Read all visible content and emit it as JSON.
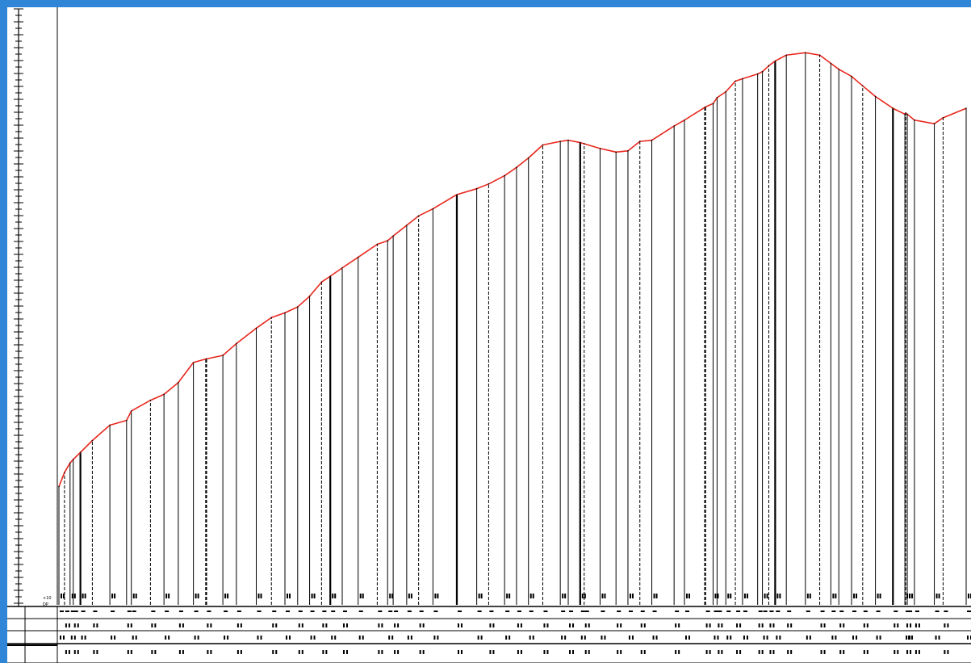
{
  "chart_data": {
    "type": "line",
    "title": "",
    "xlabel": "",
    "ylabel": "",
    "grid": false,
    "line_color": "#e8271c",
    "x": [
      0,
      7,
      14,
      18,
      27,
      42,
      64,
      85,
      91,
      115,
      132,
      150,
      169,
      185,
      206,
      223,
      248,
      267,
      284,
      300,
      315,
      330,
      341,
      356,
      376,
      400,
      413,
      420,
      437,
      452,
      470,
      500,
      525,
      540,
      560,
      575,
      590,
      608,
      630,
      640,
      655,
      660,
      680,
      700,
      715,
      730,
      745,
      773,
      786,
      812,
      822,
      827,
      838,
      850,
      859,
      878,
      884,
      892,
      900,
      914,
      938,
      956,
      970,
      980,
      996,
      1010,
      1026,
      1048,
      1063,
      1064,
      1066,
      1075,
      1100,
      1111,
      1140
    ],
    "values": [
      10,
      11.2,
      12.0,
      12.3,
      12.9,
      13.9,
      15.2,
      15.6,
      16.4,
      17.3,
      17.8,
      18.8,
      20.5,
      20.8,
      21.1,
      22.1,
      23.4,
      24.3,
      24.7,
      25.2,
      26.1,
      27.3,
      27.8,
      28.5,
      29.4,
      30.5,
      30.8,
      31.2,
      32.1,
      32.9,
      33.5,
      34.7,
      35.2,
      35.6,
      36.3,
      37.0,
      37.8,
      38.9,
      39.2,
      39.3,
      39.1,
      39.0,
      38.6,
      38.3,
      38.4,
      39.2,
      39.3,
      40.5,
      41.0,
      42.1,
      42.4,
      42.9,
      43.4,
      44.3,
      44.5,
      44.9,
      45.1,
      45.6,
      46.0,
      46.5,
      46.7,
      46.5,
      45.8,
      45.3,
      44.7,
      43.9,
      43.0,
      42.0,
      41.5,
      41.6,
      41.5,
      41.0,
      40.7,
      41.2,
      42.0
    ],
    "ylim": [
      0,
      50
    ],
    "axis_box": {
      "left_label": "+10",
      "left_label2": "DP"
    },
    "table_rows": 3
  }
}
